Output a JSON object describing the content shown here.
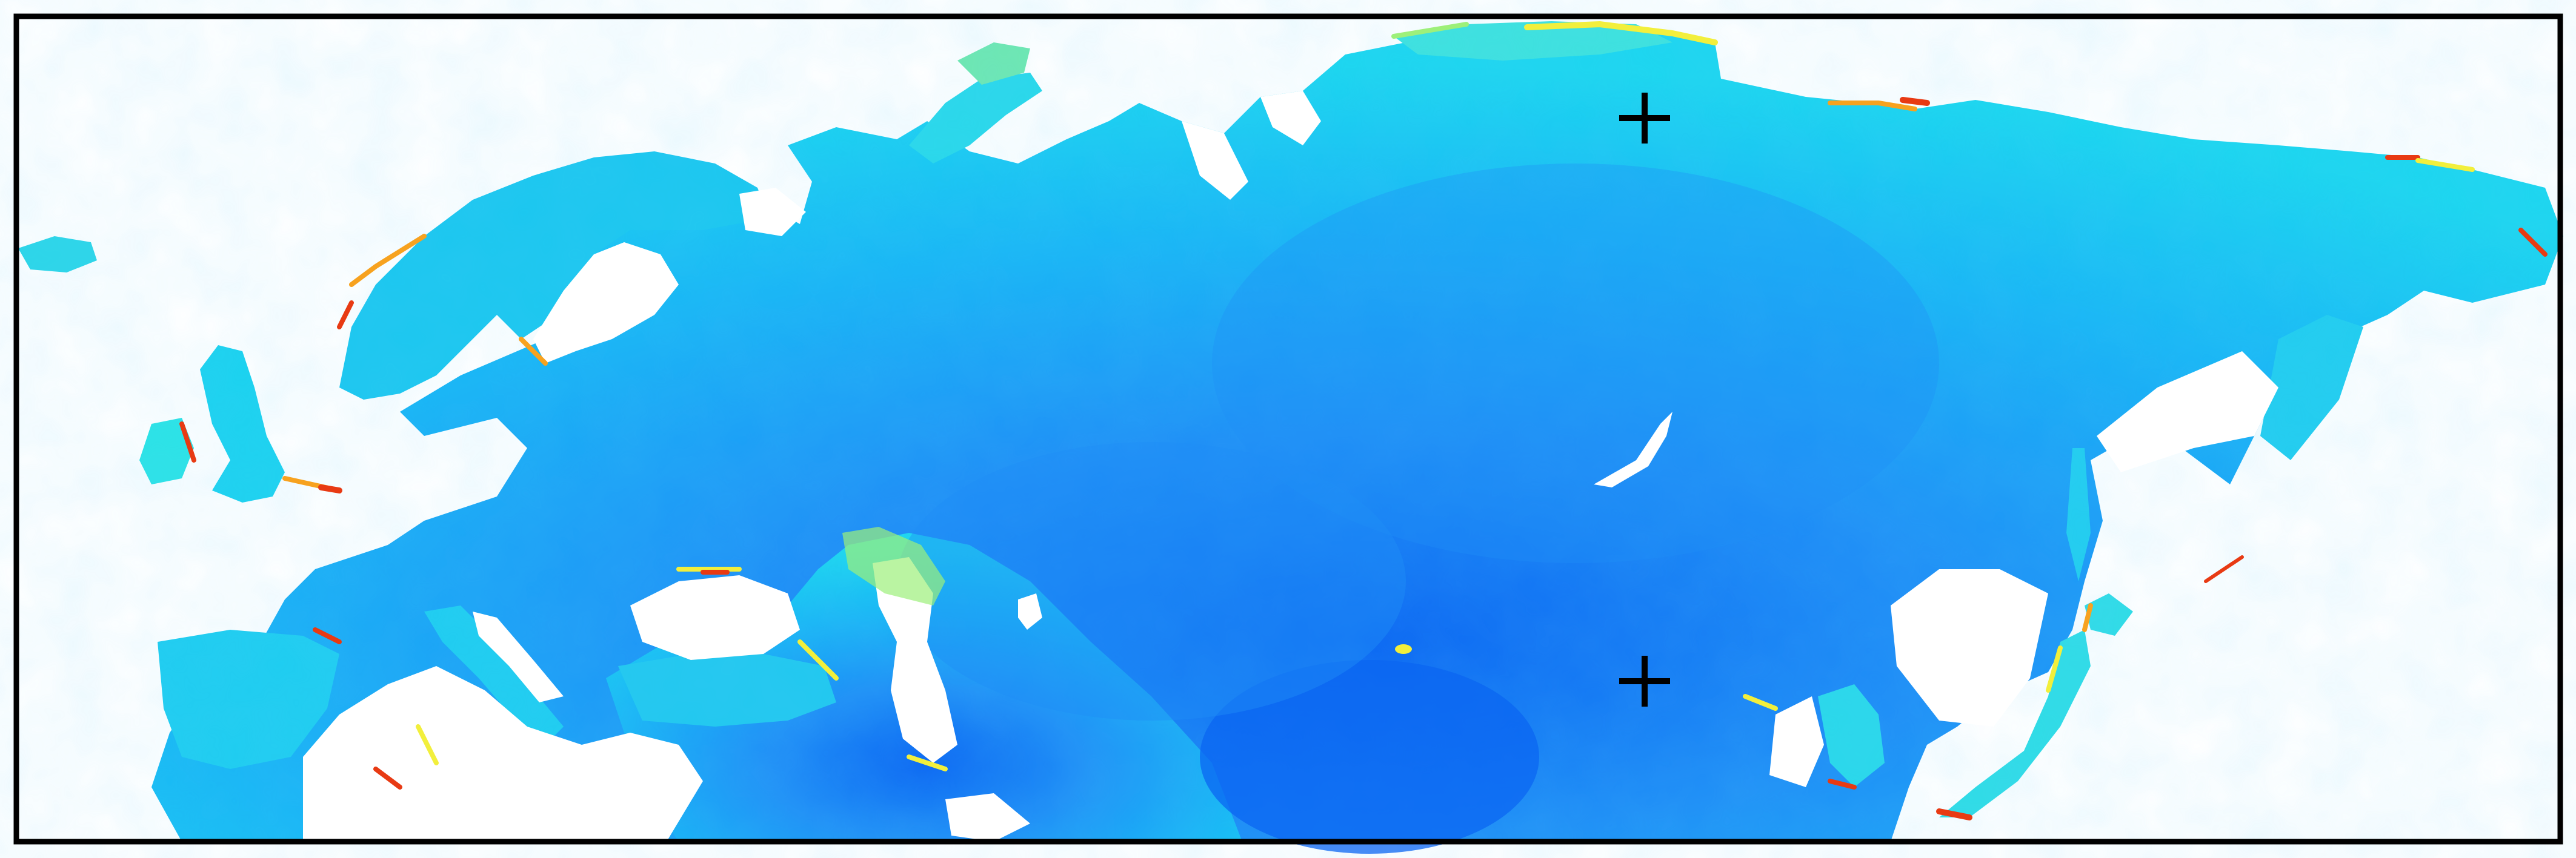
{
  "map": {
    "projection": "equirectangular",
    "region": "Eurasia",
    "background_color": "#ffffff",
    "frame_color": "#000000",
    "colormap": [
      "#0b66f2",
      "#1f8ff6",
      "#19b6f5",
      "#1cd6ef",
      "#3ff0dc",
      "#9df07a",
      "#f2ef3c",
      "#f7a21f",
      "#e83a13"
    ],
    "colors": {
      "ocean_nodata": "#ffffff",
      "land_base": "#1aa9f2",
      "land_mid": "#1ec2f0",
      "highland_low": "#0b66f2",
      "coastal_high": "#f2ef3c",
      "coastal_peak": "#e83a13",
      "lake": "#ffffff",
      "marker": "#000000"
    },
    "markers": [
      {
        "id": "north-marker",
        "symbol": "plus",
        "color": "#000000"
      },
      {
        "id": "south-marker",
        "symbol": "plus",
        "color": "#000000"
      }
    ]
  }
}
